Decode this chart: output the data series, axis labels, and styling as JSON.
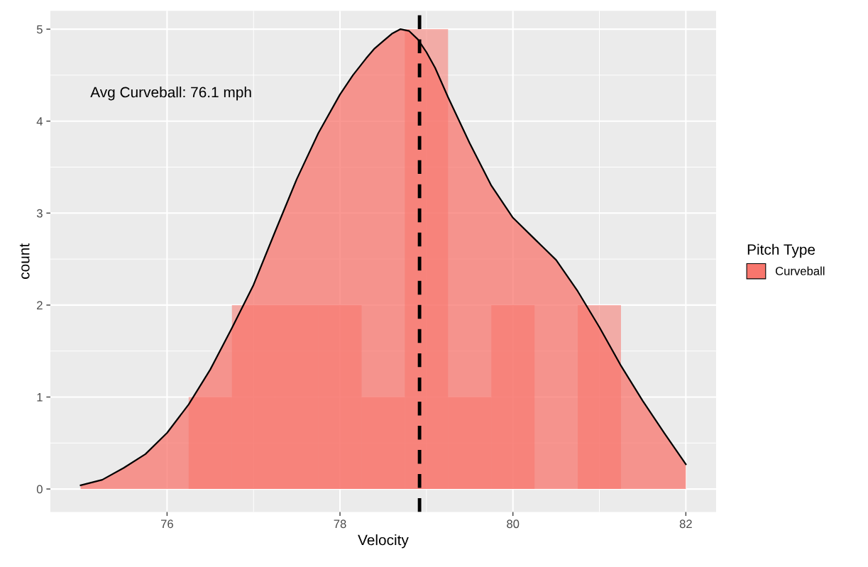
{
  "chart_data": {
    "type": "histogram",
    "xlabel": "Velocity",
    "ylabel": "count",
    "legend_title": "Pitch Type",
    "bins": [
      75.25,
      75.75,
      76.25,
      76.75,
      77.25,
      77.75,
      78.25,
      78.75,
      79.25,
      79.75,
      80.25,
      80.75,
      81.25,
      81.75
    ],
    "series": [
      {
        "name": "Curveball",
        "color": "#f8766d",
        "values": [
          0,
          0,
          1,
          2,
          2,
          2,
          1,
          5,
          1,
          2,
          0,
          2,
          0
        ]
      },
      {
        "type": "area",
        "color": "#f8766d",
        "x": [
          75.0,
          75.25,
          75.5,
          75.75,
          76.0,
          76.25,
          76.5,
          76.75,
          77.0,
          77.25,
          77.5,
          77.75,
          78.0,
          78.15,
          78.3,
          78.4,
          78.5,
          78.6,
          78.7,
          78.8,
          78.9,
          79.0,
          79.1,
          79.25,
          79.5,
          79.75,
          80.0,
          80.25,
          80.5,
          80.75,
          81.0,
          81.25,
          81.5,
          81.75,
          82.0
        ],
        "values": [
          0.04,
          0.1,
          0.23,
          0.38,
          0.61,
          0.92,
          1.3,
          1.75,
          2.22,
          2.8,
          3.37,
          3.87,
          4.29,
          4.5,
          4.68,
          4.79,
          4.87,
          4.95,
          5.0,
          4.98,
          4.89,
          4.75,
          4.58,
          4.26,
          3.76,
          3.3,
          2.95,
          2.72,
          2.49,
          2.15,
          1.76,
          1.34,
          0.96,
          0.61,
          0.27
        ]
      }
    ],
    "ref_lines": [
      {
        "axis": "x",
        "value": 78.92,
        "color": "#000000",
        "line_style": "dashed"
      }
    ],
    "annotations": [
      "Avg Curveball: 76.1 mph"
    ],
    "xlim": [
      74.65,
      82.35
    ],
    "ylim": [
      -0.25,
      5.2
    ],
    "xticks": [
      76,
      78,
      80,
      82
    ],
    "yticks": [
      0,
      1,
      2,
      3,
      4,
      5
    ],
    "grid": true,
    "legend": "right"
  }
}
